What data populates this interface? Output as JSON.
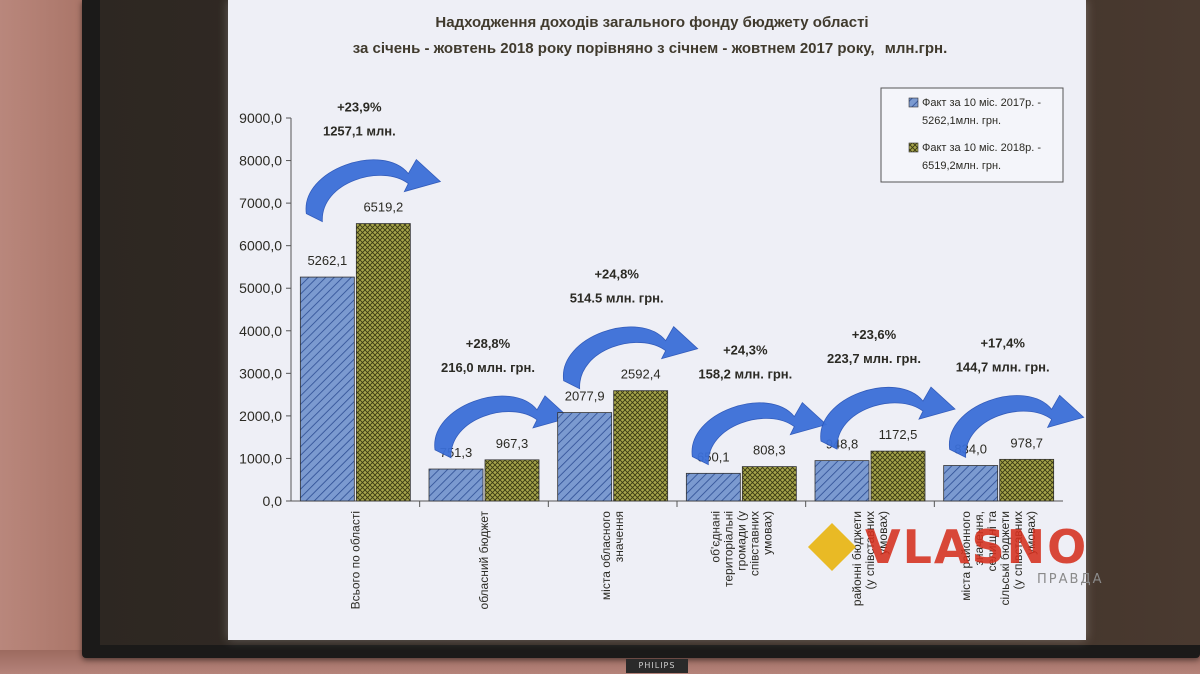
{
  "slide": {
    "title_line1": "Надходження доходів загального фонду бюджету області",
    "title_line2": "за січень - жовтень 2018 року порівняно з січнем - жовтнем 2017 року,",
    "title_unit": "млн.грн."
  },
  "tv_brand": "PHILIPS",
  "watermark": {
    "text": "VLASNO",
    "sub": "ПРАВДА"
  },
  "colors": {
    "slide_bg": "#eeeff6",
    "series_2017": "#7b9ad0",
    "series_2017_hatch": "#2c4c93",
    "series_2018": "#a6a44a",
    "series_2018_hatch": "#3a3a14",
    "arrow": "#3b6fd8",
    "title": "#403a2d",
    "annotation": "#2b2a24"
  },
  "chart_data": {
    "type": "bar",
    "title": "",
    "xlabel": "",
    "ylabel": "",
    "ylim": [
      0,
      9000
    ],
    "yticks": [
      "0,0",
      "1000,0",
      "2000,0",
      "3000,0",
      "4000,0",
      "5000,0",
      "6000,0",
      "7000,0",
      "8000,0",
      "9000,0"
    ],
    "grid": false,
    "legend_position": "top-right",
    "categories": [
      [
        "Всього по області"
      ],
      [
        "обласний бюджет"
      ],
      [
        "міста обласного",
        "значення"
      ],
      [
        "об'єднані",
        "територіальні",
        "громади (у",
        "співставних",
        "умовах)"
      ],
      [
        "районні бюджети",
        "(у співставних",
        "умовах)"
      ],
      [
        "міста районного",
        "значення,",
        "селищні та",
        "сільські бюджети",
        "(у співставних",
        "умовах)"
      ]
    ],
    "series": [
      {
        "name": "Факт за 10 міс. 2017р. - 5262,1млн. грн.",
        "legend_lines": [
          "Факт за 10 міс. 2017р. -",
          "5262,1млн. грн."
        ],
        "values": [
          5262.1,
          751.3,
          2077.9,
          650.1,
          948.8,
          834.0
        ],
        "labels": [
          "5262,1",
          "751,3",
          "2077,9",
          "650,1",
          "948,8",
          "834,0"
        ]
      },
      {
        "name": "Факт за 10 міс. 2018р. - 6519,2млн. грн.",
        "legend_lines": [
          "Факт за 10 міс. 2018р. -",
          "6519,2млн. грн."
        ],
        "values": [
          6519.2,
          967.3,
          2592.4,
          808.3,
          1172.5,
          978.7
        ],
        "labels": [
          "6519,2",
          "967,3",
          "2592,4",
          "808,3",
          "1172,5",
          "978,7"
        ]
      }
    ],
    "annotations": [
      {
        "percent": "+23,9%",
        "amount": "1257,1 млн."
      },
      {
        "percent": "+28,8%",
        "amount": "216,0 млн. грн."
      },
      {
        "percent": "+24,8%",
        "amount": "514.5 млн. грн."
      },
      {
        "percent": "+24,3%",
        "amount": "158,2 млн. грн."
      },
      {
        "percent": "+23,6%",
        "amount": "223,7 млн. грн."
      },
      {
        "percent": "+17,4%",
        "amount": "144,7 млн. грн."
      }
    ]
  }
}
